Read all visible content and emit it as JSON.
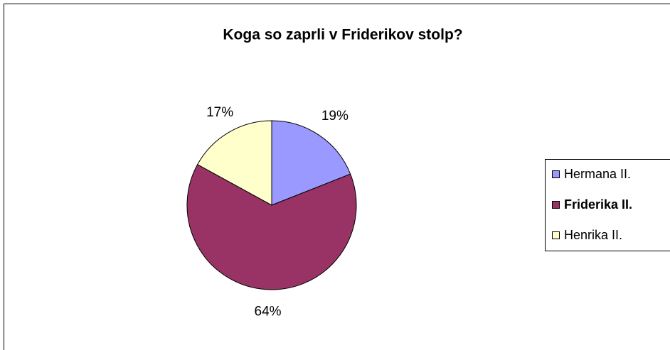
{
  "chart_data": {
    "type": "pie",
    "title": "Koga so zaprli v Friderikov stolp?",
    "categories": [
      "Hermana II.",
      "Friderika II.",
      "Henrika II."
    ],
    "values": [
      19,
      64,
      17
    ],
    "value_labels": [
      "19%",
      "64%",
      "17%"
    ],
    "colors": [
      "#9999ff",
      "#993366",
      "#ffffcc"
    ]
  }
}
